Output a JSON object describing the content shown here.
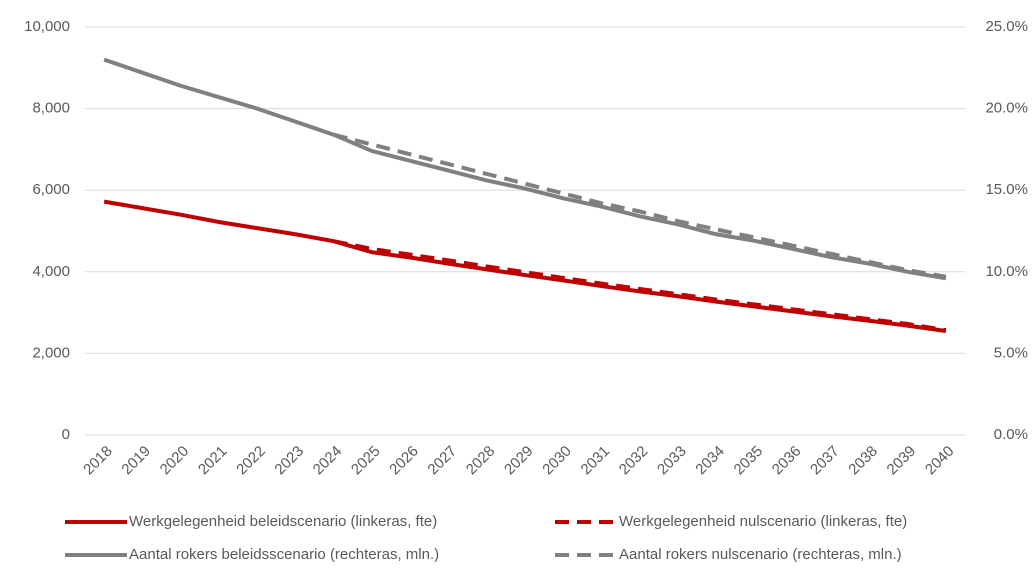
{
  "chart_data": {
    "type": "line",
    "categories": [
      "2018",
      "2019",
      "2020",
      "2021",
      "2022",
      "2023",
      "2024",
      "2025",
      "2026",
      "2027",
      "2028",
      "2029",
      "2030",
      "2031",
      "2032",
      "2033",
      "2034",
      "2035",
      "2036",
      "2037",
      "2038",
      "2039",
      "2040"
    ],
    "series": [
      {
        "name": "Werkgelegenheid beleidscenario (linkeras, fte)",
        "color": "#c00000",
        "dash": false,
        "values": [
          5720,
          5560,
          5400,
          5220,
          5070,
          4920,
          4750,
          4480,
          4350,
          4200,
          4060,
          3920,
          3790,
          3650,
          3520,
          3400,
          3270,
          3150,
          3030,
          2910,
          2800,
          2680,
          2550
        ]
      },
      {
        "name": "Werkgelegenheid nulscenario (linkeras, fte)",
        "color": "#c00000",
        "dash": true,
        "values": [
          null,
          null,
          null,
          null,
          null,
          null,
          4750,
          4560,
          4420,
          4280,
          4130,
          3990,
          3850,
          3710,
          3580,
          3450,
          3320,
          3200,
          3080,
          2960,
          2840,
          2720,
          2570
        ]
      },
      {
        "name": "Aantal rokers beleidsscenario (rechteras, mln.)",
        "color": "#808080",
        "dash": false,
        "axis": "y2",
        "values": [
          23.0,
          22.2,
          21.4,
          20.7,
          20.0,
          19.2,
          18.4,
          17.4,
          16.8,
          16.2,
          15.6,
          15.1,
          14.5,
          14.0,
          13.4,
          12.9,
          12.3,
          11.9,
          11.4,
          10.9,
          10.5,
          10.0,
          9.6
        ]
      },
      {
        "name": "Aantal rokers nulscenario (rechteras, mln.)",
        "color": "#808080",
        "dash": true,
        "axis": "y2",
        "values": [
          null,
          null,
          null,
          null,
          null,
          null,
          18.4,
          17.8,
          17.2,
          16.6,
          16.0,
          15.4,
          14.8,
          14.2,
          13.7,
          13.1,
          12.6,
          12.1,
          11.6,
          11.1,
          10.6,
          10.1,
          9.7
        ]
      }
    ],
    "ylim": [
      0,
      10000
    ],
    "yticks": [
      0,
      {
        "value": 2000,
        "label": "2,000"
      },
      {
        "value": 4000,
        "label": "4,000"
      },
      {
        "value": 6000,
        "label": "6,000"
      },
      {
        "value": 8000,
        "label": "8,000"
      },
      {
        "value": 10000,
        "label": "10,000"
      }
    ],
    "y2lim": [
      0,
      25
    ],
    "y2ticks": [
      {
        "value": 0,
        "label": "0.0%"
      },
      {
        "value": 5,
        "label": "5.0%"
      },
      {
        "value": 10,
        "label": "10.0%"
      },
      {
        "value": 15,
        "label": "15.0%"
      },
      {
        "value": 20,
        "label": "20.0%"
      },
      {
        "value": 25,
        "label": "25.0%"
      }
    ],
    "grid": true
  }
}
